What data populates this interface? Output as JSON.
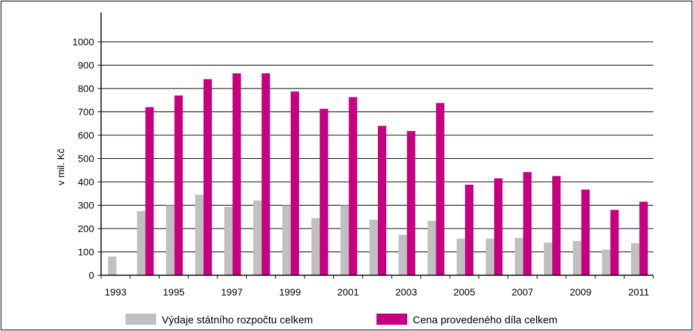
{
  "chart_data": {
    "type": "bar",
    "title": "",
    "xlabel": "",
    "ylabel": "v mil. Kč",
    "ylim": [
      0,
      1000
    ],
    "yticks": [
      0,
      100,
      200,
      300,
      400,
      500,
      600,
      700,
      800,
      900,
      1000
    ],
    "grid": true,
    "legend_position": "bottom",
    "categories": [
      "1993",
      "1994",
      "1995",
      "1996",
      "1997",
      "1998",
      "1999",
      "2000",
      "2001",
      "2002",
      "2003",
      "2004",
      "2005",
      "2006",
      "2007",
      "2008",
      "2009",
      "2010",
      "2011"
    ],
    "xtick_labels": [
      "1993",
      "1995",
      "1997",
      "1999",
      "2001",
      "2003",
      "2005",
      "2007",
      "2009",
      "2011"
    ],
    "series": [
      {
        "name": "Výdaje státního rozpočtu celkem",
        "color": "#c0c0c0",
        "values": [
          80,
          275,
          300,
          345,
          293,
          320,
          300,
          245,
          300,
          238,
          173,
          233,
          157,
          157,
          160,
          140,
          147,
          110,
          137
        ]
      },
      {
        "name": "Cena provedeného díla celkem",
        "color": "#c50080",
        "values": [
          0,
          720,
          770,
          840,
          865,
          865,
          787,
          713,
          763,
          640,
          618,
          738,
          388,
          415,
          442,
          425,
          367,
          280,
          315
        ]
      }
    ]
  }
}
